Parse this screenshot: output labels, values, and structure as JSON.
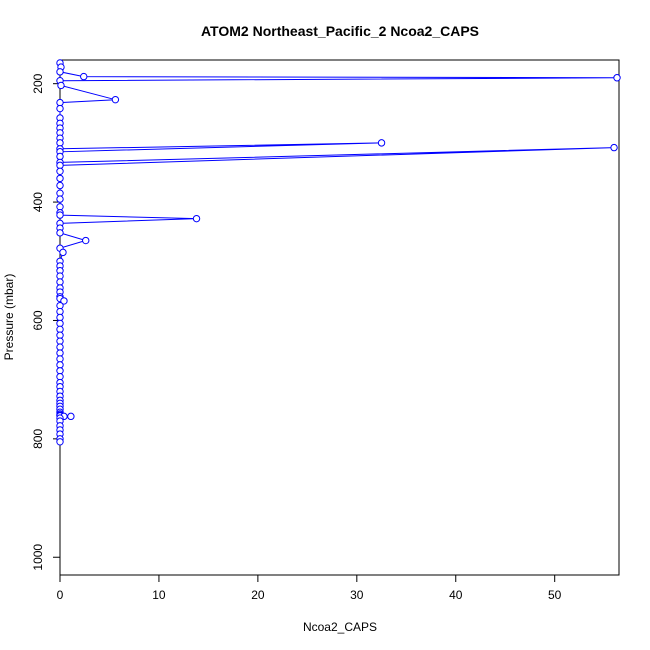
{
  "chart_data": {
    "type": "line",
    "title": "ATOM2 Northeast_Pacific_2 Ncoa2_CAPS",
    "xlabel": "Ncoa2_CAPS",
    "ylabel": "Pressure (mbar)",
    "xlim": [
      0,
      56.5
    ],
    "ylim": [
      160,
      1030
    ],
    "y_reversed": true,
    "x_ticks": [
      0,
      10,
      20,
      30,
      40,
      50
    ],
    "y_ticks": [
      200,
      400,
      600,
      800,
      1000
    ],
    "grid": false,
    "legend": "none",
    "series": [
      {
        "marker": "open-circle",
        "x": [
          0,
          0.1,
          0,
          2.4,
          56.3,
          0,
          0.1,
          5.6,
          0,
          0,
          0,
          0,
          0,
          0,
          0,
          0,
          0,
          32.5,
          0,
          0,
          0,
          56,
          0,
          0,
          0,
          0,
          0,
          0,
          0,
          0,
          0,
          13.8,
          0,
          0,
          0,
          2.6,
          0,
          0.3,
          0,
          0,
          0,
          0,
          0,
          0,
          0,
          0,
          0,
          0.4,
          0,
          0,
          0,
          0,
          0,
          0,
          0,
          0,
          0,
          0,
          0,
          0,
          0,
          0,
          0,
          0,
          0,
          0,
          0,
          0,
          0,
          0,
          0,
          0,
          0,
          0.4,
          1.1,
          0,
          0,
          0,
          0,
          0,
          0,
          0
        ],
        "y": [
          165,
          172,
          180,
          188,
          190,
          195,
          203,
          227,
          232,
          242,
          258,
          267,
          275,
          283,
          292,
          300,
          310,
          300,
          315,
          323,
          333,
          308,
          338,
          348,
          360,
          372,
          385,
          395,
          408,
          418,
          422,
          428,
          436,
          444,
          452,
          465,
          478,
          485,
          500,
          508,
          516,
          525,
          535,
          545,
          552,
          560,
          563,
          567,
          575,
          585,
          595,
          605,
          615,
          625,
          635,
          645,
          655,
          665,
          675,
          685,
          695,
          705,
          712,
          720,
          728,
          735,
          740,
          745,
          750,
          755,
          758,
          760,
          761,
          762,
          762,
          765,
          770,
          778,
          785,
          792,
          800,
          805
        ]
      }
    ],
    "series_color": "#0000ff"
  }
}
